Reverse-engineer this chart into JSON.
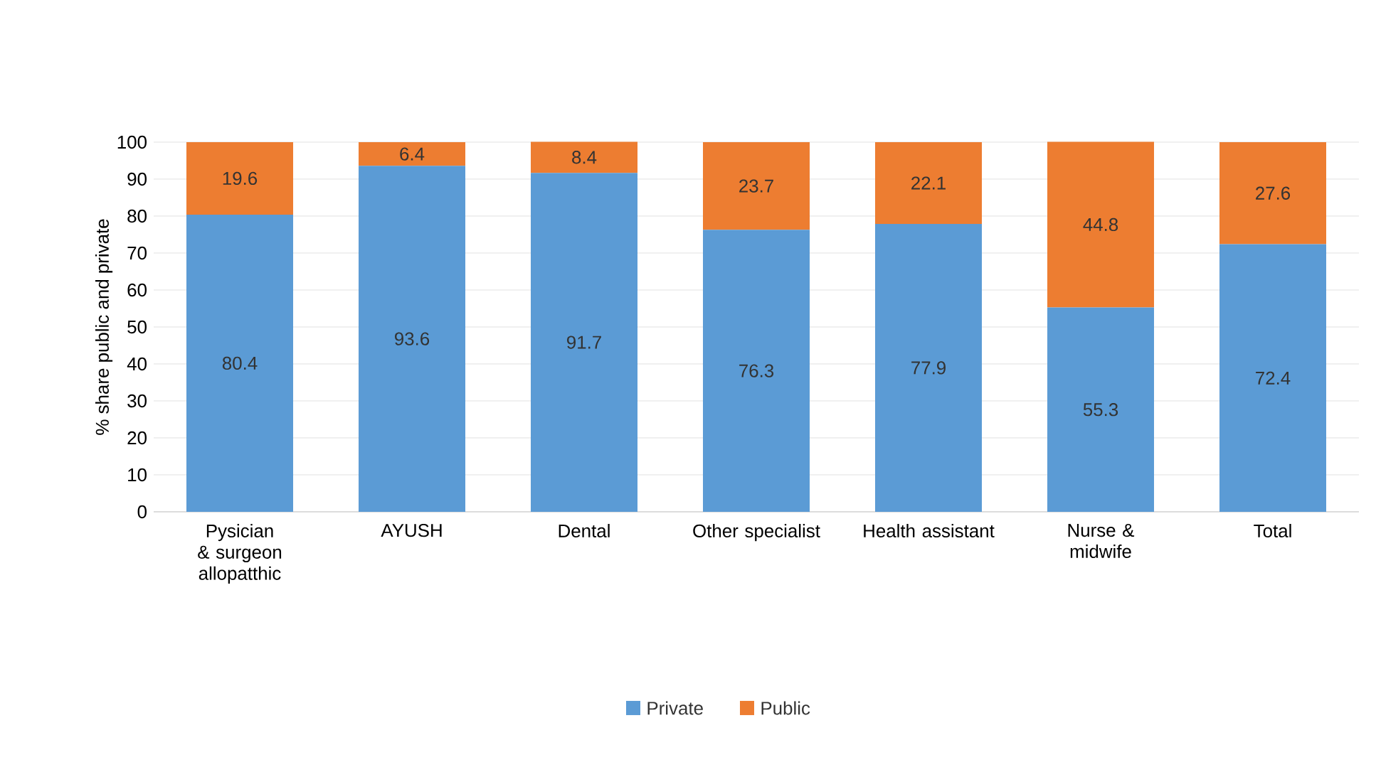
{
  "chart_data": {
    "type": "bar",
    "stacked": true,
    "ylabel": "% share public and private",
    "categories": [
      "Pysician & surgeon allopatthic",
      "AYUSH",
      "Dental",
      "Other specialist",
      "Health assistant",
      "Nurse & midwife",
      "Total"
    ],
    "series": [
      {
        "name": "Private",
        "color": "#5b9bd5",
        "values": [
          80.4,
          93.6,
          91.7,
          76.3,
          77.9,
          55.3,
          72.4
        ]
      },
      {
        "name": "Public",
        "color": "#ed7d31",
        "values": [
          19.6,
          6.4,
          8.4,
          23.7,
          22.1,
          44.8,
          27.6
        ]
      }
    ],
    "ylim": [
      0,
      100
    ],
    "yticks": [
      0,
      10,
      20,
      30,
      40,
      50,
      60,
      70,
      80,
      90,
      100
    ],
    "grid": "y",
    "legend": "bottom",
    "data_labels": true
  }
}
